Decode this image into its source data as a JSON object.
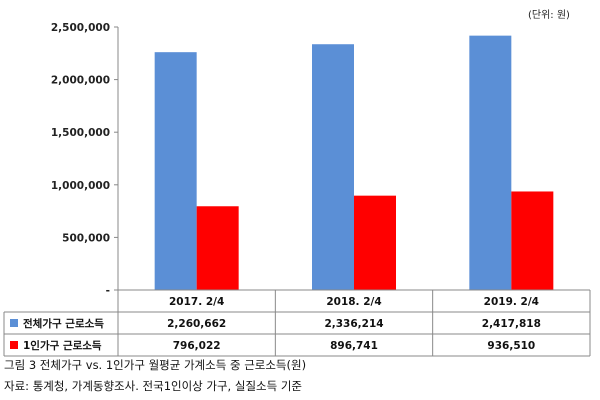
{
  "unit_label": "(단위: 원)",
  "caption": "그림 3 전체가구 vs. 1인가구 월평균 가계소득 중 근로소득(원)",
  "source": "자료: 통계청, 가계동향조사. 전국1인이상 가구, 실질소득 기준",
  "colors": {
    "series_1": "#5b8fd6",
    "series_2": "#ff0000"
  },
  "chart_data": {
    "type": "bar",
    "categories": [
      "2017. 2/4",
      "2018. 2/4",
      "2019. 2/4"
    ],
    "series": [
      {
        "name": "전체가구 근로소득",
        "values": [
          2260662,
          2336214,
          2417818
        ],
        "labels": [
          "2,260,662",
          "2,336,214",
          "2,417,818"
        ]
      },
      {
        "name": "1인가구 근로소득",
        "values": [
          796022,
          896741,
          936510
        ],
        "labels": [
          "796,022",
          "896,741",
          "936,510"
        ]
      }
    ],
    "ylim": [
      0,
      2500000
    ],
    "yticks": [
      0,
      500000,
      1000000,
      1500000,
      2000000,
      2500000
    ],
    "ytick_labels": [
      "-",
      "500,000",
      "1,000,000",
      "1,500,000",
      "2,000,000",
      "2,500,000"
    ],
    "grid": false,
    "legend": "data-table"
  }
}
